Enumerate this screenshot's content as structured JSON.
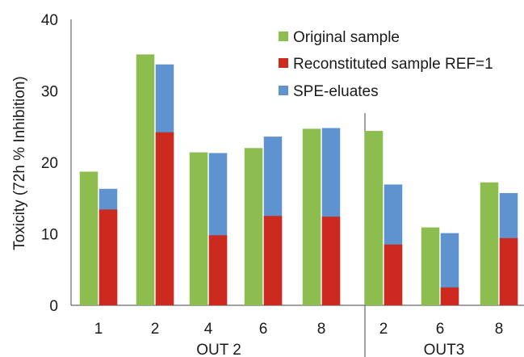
{
  "chart_data": {
    "type": "bar",
    "ylabel": "Toxicity (72h  % Inhibition)",
    "ylim": [
      0,
      40
    ],
    "yticks": [
      0,
      10,
      20,
      30,
      40
    ],
    "grid": false,
    "legend_position": "top-right",
    "groups": [
      {
        "label": "OUT 2",
        "categories": [
          "1",
          "2",
          "4",
          "6",
          "8"
        ]
      },
      {
        "label": "OUT3",
        "categories": [
          "2",
          "6",
          "8"
        ]
      }
    ],
    "categories": [
      "1",
      "2",
      "4",
      "6",
      "8",
      "2",
      "6",
      "8"
    ],
    "series": [
      {
        "name": "Original sample",
        "color": "#8dbd4f",
        "values": [
          18.7,
          35.1,
          21.4,
          22.0,
          24.7,
          24.4,
          10.9,
          17.2
        ]
      },
      {
        "name": "Reconstituted sample REF=1",
        "color": "#cc2a1f",
        "values": [
          13.4,
          24.2,
          9.8,
          12.5,
          12.4,
          8.5,
          2.5,
          9.4
        ]
      },
      {
        "name": "SPE-eluates",
        "color": "#5f93cf",
        "values": [
          16.3,
          33.7,
          21.3,
          23.6,
          24.8,
          16.9,
          10.1,
          15.7
        ]
      }
    ]
  }
}
